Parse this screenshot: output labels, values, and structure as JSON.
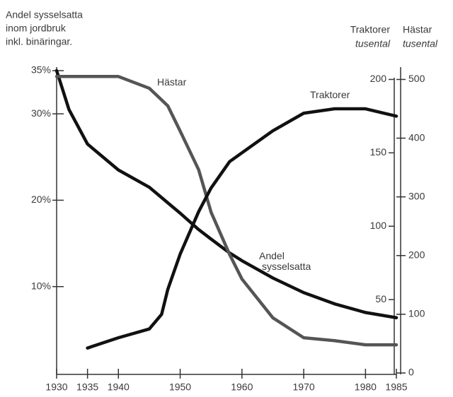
{
  "chart_data": {
    "type": "line",
    "ylabel": [
      "Andel sysselsatta",
      "inom jordbruk",
      "inkl. binäringar."
    ],
    "y2label": [
      "Traktorer",
      "tusental"
    ],
    "y3label": [
      "Hästar",
      "tusental"
    ],
    "x": [
      1930,
      1932,
      1935,
      1940,
      1945,
      1947,
      1948,
      1950,
      1953,
      1955,
      1958,
      1960,
      1965,
      1970,
      1975,
      1980,
      1985
    ],
    "xlim": [
      1930,
      1985
    ],
    "xticks": [
      1930,
      1935,
      1940,
      1950,
      1960,
      1970,
      1980,
      1985
    ],
    "ylim": [
      0,
      35
    ],
    "yticks": [
      {
        "value": 10,
        "label": "10%"
      },
      {
        "value": 20,
        "label": "20%"
      },
      {
        "value": 30,
        "label": "30%"
      },
      {
        "value": 35,
        "label": "35%"
      }
    ],
    "y2lim": [
      0,
      206
    ],
    "y2ticks": [
      50,
      100,
      150,
      200
    ],
    "y3lim": [
      0,
      515
    ],
    "y3ticks": [
      0,
      100,
      200,
      300,
      400,
      500
    ],
    "series": [
      {
        "name": "Andel sysselsatta",
        "color": "#111111",
        "axis": "y",
        "values": [
          35,
          30.5,
          26.5,
          23.5,
          21.5,
          20.3,
          19.7,
          18.5,
          16.6,
          15.5,
          13.9,
          13,
          11,
          9.3,
          8,
          7,
          6.4
        ]
      },
      {
        "name": "Hästar",
        "color": "#555555",
        "axis": "y3",
        "values": [
          505,
          505,
          505,
          505,
          485,
          465,
          455,
          412,
          346,
          274,
          202,
          160,
          94,
          60,
          55,
          48,
          48
        ]
      },
      {
        "name": "Traktorer",
        "color": "#111111",
        "axis": "y2",
        "values": [
          null,
          null,
          17,
          24,
          30,
          40,
          57,
          81,
          110,
          126,
          144,
          150,
          165,
          177,
          180,
          180,
          175
        ]
      }
    ]
  }
}
